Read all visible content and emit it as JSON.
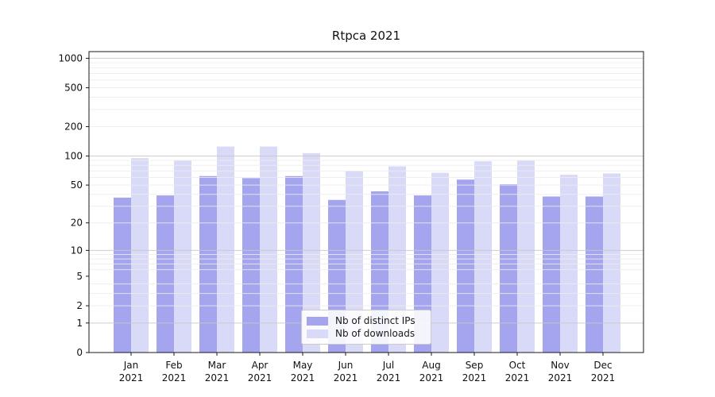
{
  "chart_data": {
    "type": "bar",
    "title": "Rtpca 2021",
    "categories": [
      "Jan 2021",
      "Feb 2021",
      "Mar 2021",
      "Apr 2021",
      "May 2021",
      "Jun 2021",
      "Jul 2021",
      "Aug 2021",
      "Sep 2021",
      "Oct 2021",
      "Nov 2021",
      "Dec 2021"
    ],
    "series": [
      {
        "name": "Nb of distinct IPs",
        "color": "#a4a4ef",
        "values": [
          37,
          39,
          62,
          59,
          62,
          35,
          43,
          39,
          57,
          51,
          38,
          38
        ]
      },
      {
        "name": "Nb of downloads",
        "color": "#d9d9f8",
        "values": [
          95,
          90,
          125,
          125,
          107,
          70,
          78,
          67,
          88,
          90,
          64,
          66
        ]
      }
    ],
    "xlabel": "",
    "ylabel": "",
    "y_axis": {
      "scale": "symlog",
      "tick_values": [
        0,
        1,
        2,
        5,
        10,
        20,
        50,
        100,
        200,
        500,
        1000
      ],
      "range_top": 1170,
      "major_grid_values": [
        1,
        10,
        100,
        1000
      ],
      "minor_grid_values": [
        2,
        3,
        4,
        6,
        7,
        8,
        9,
        20,
        30,
        40,
        50,
        60,
        70,
        80,
        90,
        200,
        300,
        400,
        500,
        600,
        700,
        800,
        900
      ]
    },
    "grid": "horizontal",
    "legend_position": "inside-bottom-center",
    "colors": {
      "spine": "#1a1a1a",
      "major_grid": "#c9c9c9",
      "minor_grid": "#ececec",
      "tick_label": "#111111"
    }
  }
}
